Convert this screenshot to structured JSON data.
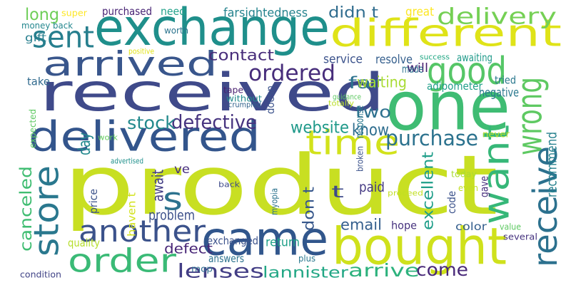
{
  "cloud": {
    "words": [
      {
        "text": "product",
        "color": "#c8df22"
      },
      {
        "text": "received",
        "color": "#3f4a8a"
      },
      {
        "text": "exchange",
        "color": "#1f8f8b"
      },
      {
        "text": "one",
        "color": "#3fbc73"
      },
      {
        "text": "bought",
        "color": "#cfe11c"
      },
      {
        "text": "different",
        "color": "#dfe318"
      },
      {
        "text": "delivered",
        "color": "#33558c"
      },
      {
        "text": "came",
        "color": "#31568c"
      },
      {
        "text": "arrived",
        "color": "#39568c"
      },
      {
        "text": "good",
        "color": "#55c667"
      },
      {
        "text": "order",
        "color": "#3aba76"
      },
      {
        "text": "want",
        "color": "#36b778"
      },
      {
        "text": "wrong",
        "color": "#5ec962"
      },
      {
        "text": "time",
        "color": "#d2e21b"
      },
      {
        "text": "store",
        "color": "#2a788e"
      },
      {
        "text": "receive",
        "color": "#2c718e"
      },
      {
        "text": "another",
        "color": "#3b528b"
      },
      {
        "text": "sent",
        "color": "#277f8e"
      },
      {
        "text": "delivery",
        "color": "#75d054"
      },
      {
        "text": "s",
        "color": "#2c728e"
      },
      {
        "text": "ordered",
        "color": "#472d7b"
      },
      {
        "text": "canceled",
        "color": "#40bd72"
      },
      {
        "text": "lenses",
        "color": "#433e85"
      },
      {
        "text": "lannister",
        "color": "#22a785"
      },
      {
        "text": "arrive",
        "color": "#2db27d"
      },
      {
        "text": "come",
        "color": "#482878"
      },
      {
        "text": "website",
        "color": "#1f998a"
      },
      {
        "text": "defective",
        "color": "#46337f"
      },
      {
        "text": "purchase",
        "color": "#2c728e"
      },
      {
        "text": "stock",
        "color": "#238a8d"
      },
      {
        "text": "two",
        "color": "#2d708e"
      },
      {
        "text": "know",
        "color": "#2e6d8e"
      },
      {
        "text": "long",
        "color": "#6ece58"
      },
      {
        "text": "didn t",
        "color": "#2f6c8e"
      },
      {
        "text": "far",
        "color": "#2c738e"
      },
      {
        "text": "contact",
        "color": "#472c7a"
      },
      {
        "text": "recommend",
        "color": "#26818e"
      },
      {
        "text": "excellent",
        "color": "#1f9e89"
      },
      {
        "text": "email",
        "color": "#355f8d"
      },
      {
        "text": "don t",
        "color": "#38588c"
      },
      {
        "text": "t",
        "color": "#3e4a89"
      },
      {
        "text": "waiting",
        "color": "#a8db34"
      },
      {
        "text": "defect",
        "color": "#482677"
      },
      {
        "text": "day",
        "color": "#23898e"
      },
      {
        "text": "problem",
        "color": "#3c4f8a"
      },
      {
        "text": "super",
        "color": "#fde725"
      },
      {
        "text": "purchased",
        "color": "#482475"
      },
      {
        "text": "need",
        "color": "#1fa088"
      },
      {
        "text": "farsightedness",
        "color": "#25838e"
      },
      {
        "text": "great",
        "color": "#fde725"
      },
      {
        "text": "money back",
        "color": "#24878e"
      },
      {
        "text": "worth",
        "color": "#2b748e"
      },
      {
        "text": "gift",
        "color": "#277f8e"
      },
      {
        "text": "positive",
        "color": "#e2e418"
      },
      {
        "text": "service",
        "color": "#3b528b"
      },
      {
        "text": "resolve",
        "color": "#355f8d"
      },
      {
        "text": "will",
        "color": "#482071"
      },
      {
        "text": "success",
        "color": "#22a884"
      },
      {
        "text": "awaiting",
        "color": "#1f9a8a"
      },
      {
        "text": "tape",
        "color": "#481f70"
      },
      {
        "text": "made",
        "color": "#2c728e"
      },
      {
        "text": "take",
        "color": "#306a8e"
      },
      {
        "text": "without",
        "color": "#238a8d"
      },
      {
        "text": "doesn",
        "color": "#3b528b"
      },
      {
        "text": "totally",
        "color": "#bade28"
      },
      {
        "text": "guidance",
        "color": "#5ec962"
      },
      {
        "text": "adipometer",
        "color": "#1f9e89"
      },
      {
        "text": "tried",
        "color": "#2a788e"
      },
      {
        "text": "negative",
        "color": "#2a788e"
      },
      {
        "text": "expected",
        "color": "#5ec962"
      },
      {
        "text": "crumpled",
        "color": "#33638d"
      },
      {
        "text": "response",
        "color": "#2a788e"
      },
      {
        "text": "paid",
        "color": "#443983"
      },
      {
        "text": "work",
        "color": "#63cb5f"
      },
      {
        "text": "advertised",
        "color": "#21918c"
      },
      {
        "text": "broken",
        "color": "#3b528b"
      },
      {
        "text": "never",
        "color": "#b5de2b"
      },
      {
        "text": "today",
        "color": "#aadc32"
      },
      {
        "text": "gave",
        "color": "#472f7d"
      },
      {
        "text": "ve",
        "color": "#472f7d"
      },
      {
        "text": "await",
        "color": "#433e85"
      },
      {
        "text": "price",
        "color": "#3b528b"
      },
      {
        "text": "haven t",
        "color": "#d2e21b"
      },
      {
        "text": "back",
        "color": "#3e4a89"
      },
      {
        "text": "myopia",
        "color": "#2c728e"
      },
      {
        "text": "proceed",
        "color": "#c2df23"
      },
      {
        "text": "code",
        "color": "#3b528b"
      },
      {
        "text": "even",
        "color": "#c2df23"
      },
      {
        "text": "quality",
        "color": "#b5de2b"
      },
      {
        "text": "exchanged",
        "color": "#3b528b"
      },
      {
        "text": "return",
        "color": "#1fa088"
      },
      {
        "text": "hope",
        "color": "#46327e"
      },
      {
        "text": "color",
        "color": "#355f8d"
      },
      {
        "text": "value",
        "color": "#5ec962"
      },
      {
        "text": "several",
        "color": "#46337f"
      },
      {
        "text": "condition",
        "color": "#414487"
      },
      {
        "text": "mop",
        "color": "#2f6c8e"
      },
      {
        "text": "answers",
        "color": "#2c728e"
      },
      {
        "text": "plus",
        "color": "#2a788e"
      }
    ]
  }
}
